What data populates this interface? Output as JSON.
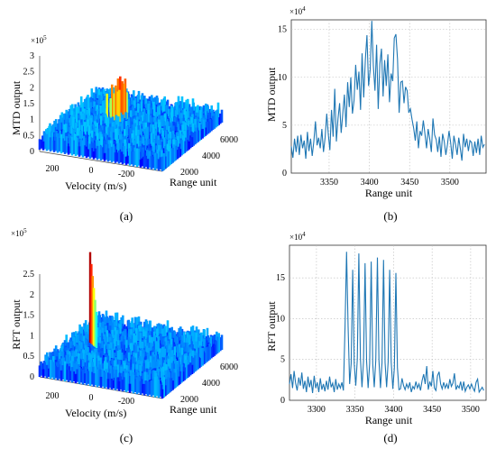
{
  "panels": {
    "a": {
      "caption": "(a)",
      "type": "3d-surface",
      "zlabel": "MTD output",
      "zexp": "×10",
      "zexp_power": "5",
      "zticks": [
        "0",
        "0.5",
        "1",
        "1.5",
        "2",
        "2.5",
        "3"
      ],
      "xlabel": "Velocity (m/s)",
      "xticks": [
        "200",
        "0",
        "-200"
      ],
      "ylabel": "Range unit",
      "yticks": [
        "2000",
        "4000",
        "6000"
      ]
    },
    "b": {
      "caption": "(b)",
      "type": "line",
      "ylabel": "MTD output",
      "yexp": "×10",
      "yexp_power": "4",
      "yticks": [
        "0",
        "5",
        "10",
        "15"
      ],
      "xlabel": "Range unit",
      "xticks": [
        "3350",
        "3400",
        "3450",
        "3500"
      ]
    },
    "c": {
      "caption": "(c)",
      "type": "3d-surface",
      "zlabel": "RFT output",
      "zexp": "×10",
      "zexp_power": "5",
      "zticks": [
        "0",
        "0.5",
        "1",
        "1.5",
        "2",
        "2.5"
      ],
      "xlabel": "Velocity (m/s)",
      "xticks": [
        "200",
        "0",
        "-200"
      ],
      "ylabel": "Range unit",
      "yticks": [
        "2000",
        "4000",
        "6000"
      ]
    },
    "d": {
      "caption": "(d)",
      "type": "line",
      "ylabel": "RFT output",
      "yexp": "×10",
      "yexp_power": "4",
      "yticks": [
        "0",
        "5",
        "10",
        "15"
      ],
      "xlabel": "Range unit",
      "xticks": [
        "3300",
        "3350",
        "3400",
        "3450",
        "3500"
      ]
    }
  },
  "chart_data": [
    {
      "type": "line",
      "panel": "b",
      "xlabel": "Range unit",
      "ylabel": "MTD output",
      "xlim": [
        3303,
        3545
      ],
      "ylim": [
        0,
        160000
      ],
      "grid": true,
      "series_color": "#1f77b4",
      "x_start": 3303,
      "x_step": 2,
      "values": [
        2.8,
        1.6,
        3.6,
        2.2,
        3.9,
        1.9,
        4.0,
        2.6,
        3.4,
        1.5,
        4.3,
        2.3,
        3.6,
        1.8,
        3.3,
        5.4,
        2.9,
        3.7,
        2.6,
        4.6,
        2.2,
        3.7,
        6.2,
        4.0,
        2.4,
        6.6,
        3.8,
        8.8,
        3.3,
        5.7,
        7.3,
        4.2,
        6.2,
        8.2,
        4.8,
        9.5,
        6.9,
        10.0,
        6.2,
        7.6,
        11.3,
        8.7,
        10.6,
        6.6,
        12.5,
        7.9,
        11.8,
        14.4,
        9.1,
        10.8,
        15.9,
        11.2,
        8.6,
        13.4,
        6.7,
        11.4,
        13.0,
        8.0,
        11.8,
        9.1,
        12.4,
        7.4,
        10.4,
        9.6,
        14.1,
        14.5,
        11.9,
        6.3,
        9.5,
        9.6,
        7.3,
        9.0,
        8.6,
        6.3,
        6.7,
        5.6,
        4.7,
        3.4,
        5.4,
        2.6,
        4.4,
        3.9,
        5.5,
        4.1,
        2.6,
        4.6,
        3.6,
        2.2,
        5.7,
        4.0,
        3.5,
        2.2,
        3.8,
        1.7,
        4.1,
        3.3,
        1.9,
        3.0,
        4.4,
        3.2,
        1.5,
        3.9,
        3.0,
        1.9,
        3.7,
        2.6,
        1.3,
        4.1,
        2.7,
        3.6,
        2.3,
        3.4,
        3.2,
        1.8,
        3.3,
        2.1,
        3.6,
        1.9,
        3.9,
        2.7,
        3.0
      ],
      "value_unit": "x1e4"
    },
    {
      "type": "line",
      "panel": "d",
      "xlabel": "Range unit",
      "ylabel": "RFT output",
      "xlim": [
        3265,
        3520
      ],
      "ylim": [
        0,
        190000
      ],
      "grid": true,
      "series_color": "#1f77b4",
      "x_start": 3265,
      "x_step": 2,
      "values": [
        2.0,
        3.2,
        1.5,
        3.6,
        2.1,
        1.2,
        2.8,
        1.8,
        3.4,
        1.4,
        2.4,
        1.0,
        2.9,
        1.6,
        2.5,
        0.9,
        3.0,
        1.5,
        2.2,
        1.0,
        2.7,
        1.3,
        2.0,
        1.1,
        2.4,
        1.3,
        2.9,
        1.6,
        2.1,
        1.0,
        2.6,
        1.3,
        2.0,
        1.5,
        2.2,
        1.2,
        9.0,
        18.2,
        9.0,
        2.0,
        4.5,
        16.0,
        4.5,
        1.8,
        5.0,
        18.0,
        5.0,
        1.6,
        4.8,
        16.8,
        4.8,
        1.5,
        4.5,
        17.0,
        4.5,
        1.6,
        4.9,
        17.5,
        4.9,
        1.5,
        4.6,
        17.2,
        4.6,
        1.6,
        4.7,
        16.0,
        4.7,
        1.4,
        4.0,
        15.6,
        4.0,
        1.3,
        1.4,
        2.7,
        1.8,
        1.3,
        2.0,
        1.5,
        2.2,
        1.0,
        1.7,
        1.4,
        2.3,
        1.5,
        2.0,
        1.2,
        2.4,
        3.2,
        2.0,
        4.2,
        1.3,
        2.3,
        1.7,
        3.6,
        1.5,
        1.2,
        3.0,
        3.5,
        2.0,
        1.4,
        2.2,
        1.5,
        2.0,
        1.4,
        2.6,
        1.7,
        2.1,
        3.3,
        1.3,
        1.8,
        1.5,
        2.3,
        1.2,
        2.3,
        1.1,
        1.6,
        1.9,
        1.4,
        2.0,
        1.5,
        1.1,
        2.2,
        2.6,
        1.0,
        1.3,
        1.6,
        1.2
      ],
      "value_unit": "x1e4"
    },
    {
      "type": "surface",
      "panel": "a",
      "zlabel": "MTD output",
      "zlim": [
        0,
        300000
      ],
      "xlim": [
        300,
        -350
      ],
      "ylim": [
        0,
        7000
      ],
      "noise_floor": 50000,
      "peak": 190000
    },
    {
      "type": "surface",
      "panel": "c",
      "zlabel": "RFT output",
      "zlim": [
        0,
        250000
      ],
      "xlim": [
        300,
        -350
      ],
      "ylim": [
        0,
        7000
      ],
      "noise_floor": 40000,
      "peak": 220000
    }
  ]
}
